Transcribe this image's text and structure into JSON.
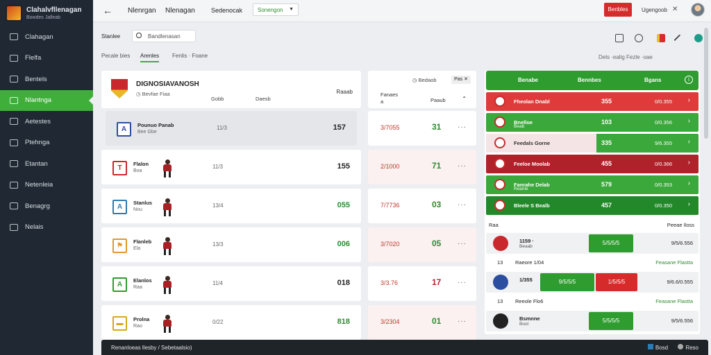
{
  "app": {
    "title": "Clahalvfllenagan",
    "subtitle": "Bowdes Jalleab"
  },
  "sidebar": {
    "items": [
      {
        "label": "Clahagan",
        "icon": "grid-icon"
      },
      {
        "label": "Flelfa",
        "icon": "list-icon"
      },
      {
        "label": "Bentels",
        "icon": "doc-icon"
      },
      {
        "label": "Nlantnga",
        "icon": "field-icon",
        "active": true
      },
      {
        "label": "Aetestes",
        "icon": "house-icon"
      },
      {
        "label": "Ptehnga",
        "icon": "chart-icon"
      },
      {
        "label": "Etantan",
        "icon": "home-icon"
      },
      {
        "label": "Netenleia",
        "icon": "network-icon"
      },
      {
        "label": "Benagrg",
        "icon": "gear-icon"
      },
      {
        "label": "Nelais",
        "icon": "settings-icon"
      }
    ]
  },
  "topbar": {
    "title1": "Nlenrgan",
    "title2": "Nlenagan",
    "filter_text": "Sedenocak",
    "select_value": "Sonengon",
    "red_button": "Benbles",
    "user_text": "Ugengoob",
    "close": "✕"
  },
  "search": {
    "label": "Stanlee",
    "placeholder": "Bandlenasan",
    "tool_icons": [
      "save-icon",
      "help-icon",
      "flag-icon",
      "pin-icon",
      "globe-icon"
    ]
  },
  "tabs": [
    {
      "label": "Pecale bies"
    },
    {
      "label": "Arenles",
      "active": true
    },
    {
      "label": "Fenlis · Foane"
    }
  ],
  "right_tools": "Dels ·ealig   Fezle ·oae",
  "left_panel": {
    "header": {
      "title": "DIGNOSIAVANOSH",
      "subtitle": "◷ Bevfae Fiaa",
      "col1": "Gobb",
      "col2": "Daesb",
      "right": "Raaab"
    },
    "rows": [
      {
        "name": "Pounuo Panab",
        "sub": "Bee Gbe",
        "mid": "11/3",
        "score": "157",
        "badge_color": "#2b4ea0",
        "badge_text": "A",
        "highlight": true
      },
      {
        "name": "Flalon",
        "sub": "Boa",
        "mid": "11/3",
        "score": "155",
        "badge_color": "#c9282c",
        "badge_text": "T"
      },
      {
        "name": "Stanlus",
        "sub": "Nou",
        "mid": "13/4",
        "score": "055",
        "badge_color": "#2b7bb5",
        "badge_text": "A",
        "score_color": "#2e8b2e"
      },
      {
        "name": "Flanleb",
        "sub": "Ela",
        "mid": "13/3",
        "score": "006",
        "badge_color": "#e3962a",
        "badge_text": "⚑",
        "score_color": "#2e8b2e"
      },
      {
        "name": "Elanlos",
        "sub": "Raa",
        "mid": "11/4",
        "score": "018",
        "badge_color": "#2e9c2e",
        "badge_text": "A"
      },
      {
        "name": "Prolna",
        "sub": "Rao",
        "mid": "0/22",
        "score": "818",
        "badge_color": "#d9a520",
        "badge_text": "▬",
        "score_color": "#2e8b2e"
      }
    ]
  },
  "mid_panel": {
    "header": {
      "a": "◷ Bedaob",
      "chip": "Pas ✕",
      "col1": "Fanaes",
      "col1b": "a",
      "col2": "Paaub",
      "sort": "⌃"
    },
    "rows": [
      {
        "odds": "3/7055",
        "val": "31",
        "val_red": false
      },
      {
        "odds": "2/1000",
        "val": "71",
        "val_red": false
      },
      {
        "odds": "7/7736",
        "val": "03",
        "val_red": false
      },
      {
        "odds": "3/7020",
        "val": "05",
        "val_red": false
      },
      {
        "odds": "3/3.76",
        "val": "17",
        "val_red": true
      },
      {
        "odds": "3/2304",
        "val": "01",
        "val_red": false
      }
    ]
  },
  "right_panel": {
    "header": {
      "c1": "Benabe",
      "c2": "Bennbes",
      "c3": "Bgans",
      "info": "i"
    },
    "rows": [
      {
        "name": "Fheolan Dnabl",
        "sub": "",
        "val": "355",
        "odds": "0/0.355",
        "color": "#e03a3a"
      },
      {
        "name": "Bnelloe",
        "sub": "Beab",
        "val": "103",
        "odds": "0/0.356",
        "color": "#3aa83a"
      },
      {
        "name": "Feedals Gorne",
        "sub": "",
        "val": "335",
        "odds": "9/6.355",
        "color": "#f4e4e6",
        "half": true
      },
      {
        "name": "Feeloe Moolab",
        "sub": "",
        "val": "455",
        "odds": "0/0.366",
        "color": "#b0222a"
      },
      {
        "name": "Fanrahe Delab",
        "sub": "Reanle",
        "val": "579",
        "odds": "0/0.353",
        "color": "#3aa83a"
      },
      {
        "name": "Bleele S Bealb",
        "sub": "",
        "val": "457",
        "odds": "0/0.350",
        "color": "#23882a"
      }
    ],
    "sub_left": "Raa",
    "sub_right": "Peeae Iloss",
    "lower": [
      {
        "t1": "1159 ·",
        "t2": "Beaab",
        "btn": "5/5/5/5",
        "btn_color": "#2e9c2e",
        "odds": "9/5/6.556",
        "badge": "#c9282c"
      },
      {
        "t1": "1/355",
        "t2": "",
        "btn": "9/5/5/5",
        "btn2": "1/5/5/5",
        "btn_color": "#2e9c2e",
        "btn2_color": "#d62b2b",
        "odds": "9/6.6/0.555",
        "badge": "#2b4ea0"
      },
      {
        "t1": "Bsmnne",
        "t2": "Bool",
        "btn": "5/5/5/5",
        "btn_color": "#2e9c2e",
        "odds": "9/5/6.556",
        "badge": "#222"
      }
    ],
    "notes": [
      {
        "a": "13",
        "b": "Raeore 1/04",
        "c": "Feasane Flastta"
      },
      {
        "a": "13",
        "b": "Reeole Flo6",
        "c": "Feasane Flastta"
      }
    ]
  },
  "bottombar": {
    "text": "Renanloeas llesby / Sebetaalsio)",
    "right1": "Bosd",
    "right2": "Reso"
  },
  "colors": {
    "accent": "#3fae3a",
    "danger": "#d62b2b",
    "sidebar": "#1f2833"
  }
}
